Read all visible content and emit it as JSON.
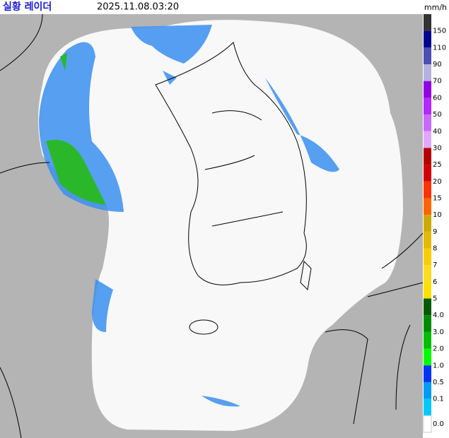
{
  "header": {
    "title": "실황 레이더",
    "timestamp": "2025.11.08.03:20",
    "unit": "mm/h"
  },
  "legend": {
    "levels": [
      {
        "label": "150",
        "color": "#000390"
      },
      {
        "label": "110",
        "color": "#4c4eb1"
      },
      {
        "label": "90",
        "color": "#b3b4de"
      },
      {
        "label": "70",
        "color": "#9300e4"
      },
      {
        "label": "60",
        "color": "#b329ff"
      },
      {
        "label": "50",
        "color": "#c969ff"
      },
      {
        "label": "40",
        "color": "#e0a9ff"
      },
      {
        "label": "30",
        "color": "#b40000"
      },
      {
        "label": "25",
        "color": "#d20000"
      },
      {
        "label": "20",
        "color": "#ff3200"
      },
      {
        "label": "15",
        "color": "#ff6600"
      },
      {
        "label": "10",
        "color": "#ccaa00"
      },
      {
        "label": "9",
        "color": "#e0b900"
      },
      {
        "label": "8",
        "color": "#f9cd00"
      },
      {
        "label": "7",
        "color": "#ffdc1f"
      },
      {
        "label": "6",
        "color": "#ffe100"
      },
      {
        "label": "5",
        "color": "#005a00"
      },
      {
        "label": "4.0",
        "color": "#008c00"
      },
      {
        "label": "3.0",
        "color": "#00be00"
      },
      {
        "label": "2.0",
        "color": "#00ff00"
      },
      {
        "label": "1.0",
        "color": "#0033f5"
      },
      {
        "label": "0.5",
        "color": "#009bf5"
      },
      {
        "label": "0.1",
        "color": "#00c8ff"
      },
      {
        "label": "0.0",
        "color": "#ffffff"
      }
    ],
    "top_color": "#333333"
  }
}
